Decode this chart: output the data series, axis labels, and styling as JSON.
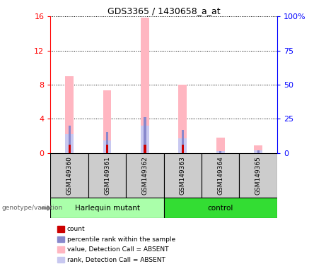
{
  "title": "GDS3365 / 1430658_a_at",
  "samples": [
    "GSM149360",
    "GSM149361",
    "GSM149362",
    "GSM149363",
    "GSM149364",
    "GSM149365"
  ],
  "group_labels": [
    "Harlequin mutant",
    "control"
  ],
  "value_absent": [
    9.0,
    7.3,
    15.8,
    8.0,
    1.8,
    0.9
  ],
  "rank_absent": [
    2.2,
    1.5,
    3.2,
    1.7,
    0.25,
    0.35
  ],
  "count": [
    1.0,
    1.0,
    1.0,
    1.0,
    0.0,
    0.0
  ],
  "percentile_rank": [
    2.2,
    1.5,
    3.2,
    1.7,
    0.25,
    0.35
  ],
  "left_ylim": [
    0,
    16
  ],
  "right_ylim": [
    0,
    100
  ],
  "left_yticks": [
    0,
    4,
    8,
    12,
    16
  ],
  "right_yticks": [
    0,
    25,
    50,
    75,
    100
  ],
  "right_yticklabels": [
    "0",
    "25",
    "50",
    "75",
    "100%"
  ],
  "color_count": "#cc0000",
  "color_percentile": "#8888cc",
  "color_value_absent": "#ffb6c1",
  "color_rank_absent": "#c8c8f0",
  "bg_color_samples": "#cccccc",
  "bg_color_group1": "#aaffaa",
  "bg_color_group2": "#33dd33",
  "genotype_label": "genotype/variation"
}
